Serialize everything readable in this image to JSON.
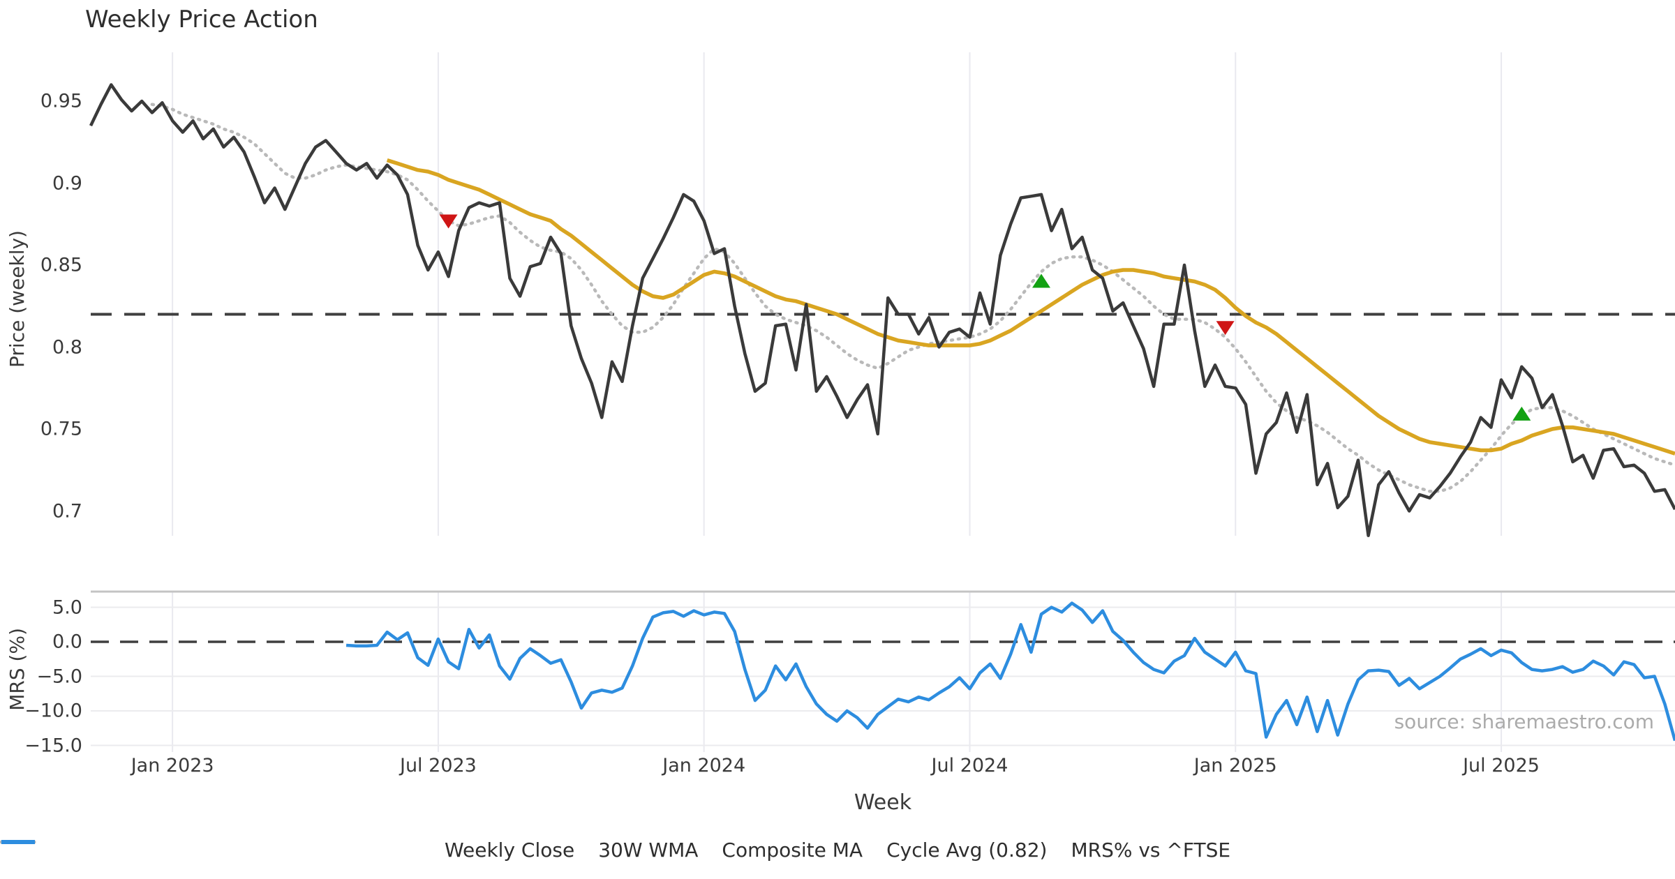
{
  "title": "Weekly Price Action",
  "watermark": "source: sharemaestro.com",
  "axes": {
    "xlabel": "Week",
    "top": {
      "ylabel": "Price (weekly)",
      "yticks": [
        {
          "label": "0.95",
          "value": 0.95
        },
        {
          "label": "0.9",
          "value": 0.9
        },
        {
          "label": "0.85",
          "value": 0.85
        },
        {
          "label": "0.8",
          "value": 0.8
        },
        {
          "label": "0.75",
          "value": 0.75
        },
        {
          "label": "0.7",
          "value": 0.7
        }
      ]
    },
    "bottom": {
      "ylabel": "MRS (%)",
      "yticks": [
        {
          "label": "5.0",
          "value": 5
        },
        {
          "label": "0.0",
          "value": 0
        },
        {
          "label": "−5.0",
          "value": -5
        },
        {
          "label": "−10.0",
          "value": -10
        },
        {
          "label": "−15.0",
          "value": -15
        }
      ]
    },
    "xticks": [
      {
        "label": "Jan 2023",
        "index": 8
      },
      {
        "label": "Jul 2023",
        "index": 34
      },
      {
        "label": "Jan 2024",
        "index": 60
      },
      {
        "label": "Jul 2024",
        "index": 86
      },
      {
        "label": "Jan 2025",
        "index": 112
      },
      {
        "label": "Jul 2025",
        "index": 138
      }
    ]
  },
  "legend": [
    {
      "label": "Weekly Close",
      "color": "#3a3a3a",
      "style": "solid"
    },
    {
      "label": "30W WMA",
      "color": "#d9a521",
      "style": "solid"
    },
    {
      "label": "Composite MA",
      "color": "#b9b9b9",
      "style": "dotted"
    },
    {
      "label": "Cycle Avg (0.82)",
      "color": "#3f3f3f",
      "style": "dashed"
    },
    {
      "label": "MRS% vs ^FTSE",
      "color": "#2d8ddf",
      "style": "solid"
    }
  ],
  "colors": {
    "background": "#ffffff",
    "grid": "#e9e9ef",
    "panel_spine": "#c4c4c4",
    "hgrid": "#ebebee",
    "weekly_close": "#3a3a3a",
    "wma_30w": "#d9a521",
    "composite_ma": "#b9b9b9",
    "cycle_avg": "#3f3f3f",
    "mrs": "#2d8ddf",
    "buy_marker": "#13a113",
    "sell_marker": "#cf1515",
    "text": "#3a3a3a",
    "watermark": "#ababab"
  },
  "chart_data": {
    "type": "line",
    "title": "Weekly Price Action",
    "x_start_date": "2022-11-07",
    "x_interval": "weekly",
    "n_points": 156,
    "top_panel": {
      "ylabel": "Price (weekly)",
      "ylim": [
        0.68,
        0.975
      ],
      "cycle_avg": 0.82,
      "series": {
        "weekly_close": [
          0.935,
          0.948,
          0.96,
          0.951,
          0.944,
          0.95,
          0.943,
          0.949,
          0.938,
          0.931,
          0.938,
          0.927,
          0.933,
          0.922,
          0.928,
          0.919,
          0.904,
          0.888,
          0.897,
          0.884,
          0.898,
          0.912,
          0.922,
          0.926,
          0.919,
          0.912,
          0.908,
          0.912,
          0.903,
          0.911,
          0.905,
          0.893,
          0.862,
          0.847,
          0.858,
          0.843,
          0.871,
          0.885,
          0.888,
          0.886,
          0.888,
          0.842,
          0.831,
          0.849,
          0.851,
          0.867,
          0.857,
          0.813,
          0.793,
          0.778,
          0.757,
          0.791,
          0.779,
          0.813,
          0.842,
          0.854,
          0.866,
          0.879,
          0.893,
          0.889,
          0.877,
          0.857,
          0.86,
          0.825,
          0.796,
          0.773,
          0.778,
          0.813,
          0.814,
          0.786,
          0.826,
          0.773,
          0.782,
          0.77,
          0.757,
          0.768,
          0.777,
          0.747,
          0.83,
          0.82,
          0.82,
          0.808,
          0.818,
          0.8,
          0.809,
          0.811,
          0.806,
          0.833,
          0.814,
          0.856,
          0.875,
          0.891,
          0.892,
          0.893,
          0.871,
          0.884,
          0.86,
          0.867,
          0.847,
          0.842,
          0.822,
          0.827,
          0.813,
          0.799,
          0.776,
          0.814,
          0.814,
          0.85,
          0.81,
          0.776,
          0.789,
          0.776,
          0.775,
          0.765,
          0.723,
          0.747,
          0.754,
          0.772,
          0.748,
          0.771,
          0.716,
          0.729,
          0.702,
          0.709,
          0.731,
          0.685,
          0.716,
          0.724,
          0.711,
          0.7,
          0.71,
          0.708,
          0.715,
          0.723,
          0.733,
          0.742,
          0.757,
          0.751,
          0.78,
          0.769,
          0.788,
          0.781,
          0.763,
          0.771,
          0.752,
          0.73,
          0.734,
          0.72,
          0.737,
          0.738,
          0.727,
          0.728,
          0.723,
          0.712,
          0.713,
          0.701
        ],
        "wma_30w": [
          null,
          null,
          null,
          null,
          null,
          null,
          null,
          null,
          null,
          null,
          null,
          null,
          null,
          null,
          null,
          null,
          null,
          null,
          null,
          null,
          null,
          null,
          null,
          null,
          null,
          null,
          null,
          null,
          null,
          0.914,
          0.912,
          0.91,
          0.908,
          0.907,
          0.905,
          0.902,
          0.9,
          0.898,
          0.896,
          0.893,
          0.89,
          0.887,
          0.884,
          0.881,
          0.879,
          0.877,
          0.872,
          0.868,
          0.863,
          0.858,
          0.853,
          0.848,
          0.843,
          0.838,
          0.834,
          0.831,
          0.83,
          0.832,
          0.836,
          0.84,
          0.844,
          0.846,
          0.845,
          0.843,
          0.84,
          0.837,
          0.834,
          0.831,
          0.829,
          0.828,
          0.826,
          0.824,
          0.822,
          0.82,
          0.817,
          0.814,
          0.811,
          0.808,
          0.806,
          0.804,
          0.803,
          0.802,
          0.801,
          0.801,
          0.801,
          0.801,
          0.801,
          0.802,
          0.804,
          0.807,
          0.81,
          0.814,
          0.818,
          0.822,
          0.826,
          0.83,
          0.834,
          0.838,
          0.841,
          0.844,
          0.846,
          0.847,
          0.847,
          0.846,
          0.845,
          0.843,
          0.842,
          0.841,
          0.84,
          0.838,
          0.835,
          0.83,
          0.824,
          0.819,
          0.815,
          0.812,
          0.808,
          0.803,
          0.798,
          0.793,
          0.788,
          0.783,
          0.778,
          0.773,
          0.768,
          0.763,
          0.758,
          0.754,
          0.75,
          0.747,
          0.744,
          0.742,
          0.741,
          0.74,
          0.739,
          0.738,
          0.737,
          0.737,
          0.738,
          0.741,
          0.743,
          0.746,
          0.748,
          0.75,
          0.751,
          0.751,
          0.75,
          0.749,
          0.748,
          0.747,
          0.745,
          0.743,
          0.741,
          0.739,
          0.737,
          0.735
        ],
        "composite_ma": [
          null,
          null,
          null,
          null,
          null,
          null,
          0.948,
          0.947,
          0.945,
          0.942,
          0.94,
          0.938,
          0.936,
          0.933,
          0.931,
          0.928,
          0.924,
          0.918,
          0.912,
          0.906,
          0.903,
          0.903,
          0.905,
          0.908,
          0.91,
          0.911,
          0.91,
          0.909,
          0.908,
          0.907,
          0.905,
          0.902,
          0.896,
          0.889,
          0.883,
          0.877,
          0.874,
          0.875,
          0.877,
          0.879,
          0.88,
          0.876,
          0.87,
          0.865,
          0.861,
          0.859,
          0.858,
          0.854,
          0.847,
          0.838,
          0.828,
          0.82,
          0.813,
          0.809,
          0.809,
          0.812,
          0.818,
          0.826,
          0.836,
          0.845,
          0.854,
          0.86,
          0.858,
          0.851,
          0.842,
          0.833,
          0.825,
          0.82,
          0.817,
          0.815,
          0.813,
          0.81,
          0.806,
          0.801,
          0.796,
          0.792,
          0.789,
          0.787,
          0.79,
          0.794,
          0.798,
          0.8,
          0.802,
          0.803,
          0.804,
          0.805,
          0.806,
          0.808,
          0.811,
          0.816,
          0.823,
          0.831,
          0.839,
          0.846,
          0.851,
          0.854,
          0.855,
          0.855,
          0.853,
          0.85,
          0.846,
          0.841,
          0.836,
          0.831,
          0.825,
          0.82,
          0.817,
          0.817,
          0.817,
          0.815,
          0.811,
          0.806,
          0.799,
          0.791,
          0.782,
          0.773,
          0.766,
          0.761,
          0.757,
          0.755,
          0.752,
          0.748,
          0.743,
          0.738,
          0.734,
          0.729,
          0.725,
          0.722,
          0.719,
          0.716,
          0.714,
          0.712,
          0.712,
          0.714,
          0.718,
          0.724,
          0.731,
          0.738,
          0.746,
          0.753,
          0.758,
          0.762,
          0.763,
          0.763,
          0.761,
          0.758,
          0.754,
          0.75,
          0.747,
          0.744,
          0.741,
          0.738,
          0.735,
          0.732,
          0.73,
          0.728
        ],
        "markers": [
          {
            "type": "sell",
            "index": 35,
            "price": 0.877
          },
          {
            "type": "buy",
            "index": 93,
            "price": 0.84
          },
          {
            "type": "sell",
            "index": 111,
            "price": 0.812
          },
          {
            "type": "buy",
            "index": 140,
            "price": 0.759
          }
        ]
      }
    },
    "bottom_panel": {
      "ylabel": "MRS (%)",
      "ylim": [
        -16,
        7.2
      ],
      "zero_line": 0,
      "series": {
        "mrs_pct": [
          null,
          null,
          null,
          null,
          null,
          null,
          null,
          null,
          null,
          null,
          null,
          null,
          null,
          null,
          null,
          null,
          null,
          null,
          null,
          null,
          null,
          null,
          null,
          null,
          null,
          -0.5,
          -0.6,
          -0.6,
          -0.5,
          1.4,
          0.3,
          1.3,
          -2.3,
          -3.4,
          0.4,
          -2.9,
          -3.9,
          1.8,
          -0.9,
          1.0,
          -3.5,
          -5.4,
          -2.4,
          -1.0,
          -2.0,
          -3.1,
          -2.6,
          -5.8,
          -9.6,
          -7.4,
          -7.0,
          -7.3,
          -6.7,
          -3.5,
          0.5,
          3.6,
          4.2,
          4.4,
          3.7,
          4.5,
          3.9,
          4.3,
          4.1,
          1.5,
          -4.0,
          -8.5,
          -7.0,
          -3.5,
          -5.5,
          -3.2,
          -6.5,
          -9.0,
          -10.5,
          -11.5,
          -10.0,
          -11.0,
          -12.5,
          -10.5,
          -9.4,
          -8.3,
          -8.7,
          -8.0,
          -8.4,
          -7.4,
          -6.5,
          -5.2,
          -6.8,
          -4.5,
          -3.2,
          -5.3,
          -1.8,
          2.5,
          -1.5,
          4.0,
          5.0,
          4.3,
          5.6,
          4.6,
          2.8,
          4.5,
          1.5,
          0.2,
          -1.5,
          -3.0,
          -4.0,
          -4.5,
          -2.8,
          -2.0,
          0.5,
          -1.5,
          -2.5,
          -3.5,
          -1.5,
          -4.2,
          -4.6,
          -13.8,
          -10.5,
          -8.5,
          -12.0,
          -8.0,
          -13.0,
          -8.5,
          -13.5,
          -9.0,
          -5.5,
          -4.2,
          -4.1,
          -4.3,
          -6.3,
          -5.3,
          -6.8,
          -5.9,
          -5.0,
          -3.8,
          -2.5,
          -1.8,
          -1.0,
          -2.0,
          -1.2,
          -1.6,
          -3.0,
          -4.0,
          -4.2,
          -4.0,
          -3.6,
          -4.4,
          -4.0,
          -2.8,
          -3.5,
          -4.8,
          -2.9,
          -3.3,
          -5.2,
          -5.0,
          -9.0,
          -14.3
        ]
      }
    }
  }
}
